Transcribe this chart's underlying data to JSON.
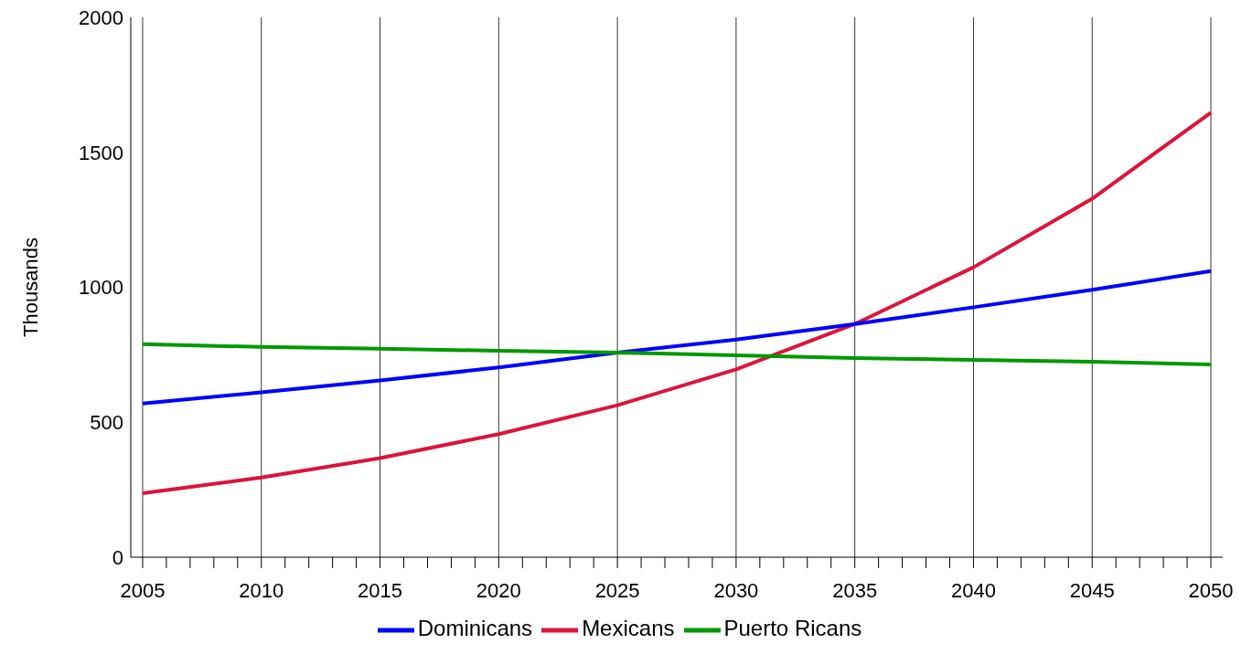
{
  "chart_data": {
    "type": "line",
    "ylabel": "Thousands",
    "x": [
      2005,
      2010,
      2015,
      2020,
      2025,
      2030,
      2035,
      2040,
      2045,
      2050
    ],
    "series": [
      {
        "name": "Mexicans",
        "color": "#dc143c",
        "values": [
          237,
          295,
          367,
          456,
          563,
          696,
          864,
          1074,
          1328,
          1647
        ]
      },
      {
        "name": "Dominicans",
        "color": "#0000ff",
        "values": [
          569,
          611,
          655,
          703,
          758,
          806,
          864,
          926,
          991,
          1060
        ]
      },
      {
        "name": "Puerto Ricans",
        "color": "#009900",
        "values": [
          789,
          779,
          772,
          765,
          758,
          748,
          738,
          731,
          724,
          714
        ]
      }
    ],
    "xlim": [
      2004.5,
      2050.5
    ],
    "xticks": [
      2005,
      {
        "value": 2006,
        "label": null
      },
      {
        "value": 2007,
        "label": null
      },
      {
        "value": 2008,
        "label": null
      },
      {
        "value": 2009,
        "label": null
      },
      2010,
      {
        "value": 2011,
        "label": null
      },
      {
        "value": 2012,
        "label": null
      },
      {
        "value": 2013,
        "label": null
      },
      {
        "value": 2014,
        "label": null
      },
      2015,
      {
        "value": 2016,
        "label": null
      },
      {
        "value": 2017,
        "label": null
      },
      {
        "value": 2018,
        "label": null
      },
      {
        "value": 2019,
        "label": null
      },
      2020,
      {
        "value": 2021,
        "label": null
      },
      {
        "value": 2022,
        "label": null
      },
      {
        "value": 2023,
        "label": null
      },
      {
        "value": 2024,
        "label": null
      },
      2025,
      {
        "value": 2026,
        "label": null
      },
      {
        "value": 2027,
        "label": null
      },
      {
        "value": 2028,
        "label": null
      },
      {
        "value": 2029,
        "label": null
      },
      2030,
      {
        "value": 2031,
        "label": null
      },
      {
        "value": 2032,
        "label": null
      },
      {
        "value": 2033,
        "label": null
      },
      {
        "value": 2034,
        "label": null
      },
      2035,
      {
        "value": 2036,
        "label": null
      },
      {
        "value": 2037,
        "label": null
      },
      {
        "value": 2038,
        "label": null
      },
      {
        "value": 2039,
        "label": null
      },
      2040,
      {
        "value": 2041,
        "label": null
      },
      {
        "value": 2042,
        "label": null
      },
      {
        "value": 2043,
        "label": null
      },
      {
        "value": 2044,
        "label": null
      },
      2045,
      {
        "value": 2046,
        "label": null
      },
      {
        "value": 2047,
        "label": null
      },
      {
        "value": 2048,
        "label": null
      },
      {
        "value": 2049,
        "label": null
      },
      2050
    ],
    "ylim": [
      0,
      2000
    ],
    "yticks": [
      0,
      500,
      1000,
      1500,
      2000
    ],
    "grid": "x",
    "legend": "bottom",
    "marker": "none",
    "line_style": "solid"
  }
}
